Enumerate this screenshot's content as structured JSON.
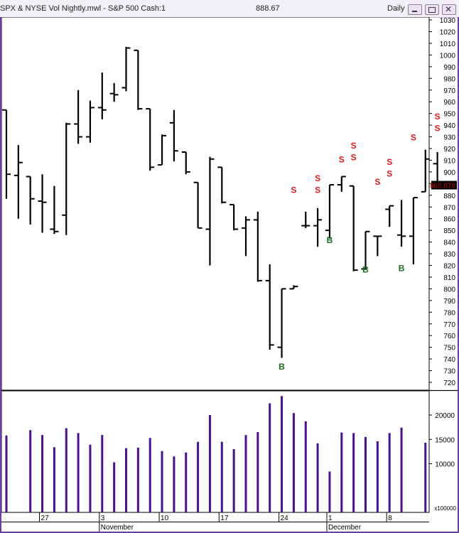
{
  "window": {
    "title": "SPX & NYSE Vol Nightly.mwl - S&P 500 Cash:1",
    "last_price": "888.67",
    "interval": "Daily"
  },
  "chart_data": {
    "type": "ohlc",
    "price_axis": {
      "min": 720,
      "max": 1030,
      "step": 10,
      "last_price_label": "888.670"
    },
    "volume_axis": {
      "ticks": [
        10000,
        15000,
        20000
      ],
      "multiplier_label": "x100000",
      "max": 25000
    },
    "x_ticks": [
      {
        "label": "27",
        "index": 3
      },
      {
        "label": "3",
        "index": 8
      },
      {
        "label": "10",
        "index": 13
      },
      {
        "label": "17",
        "index": 18
      },
      {
        "label": "24",
        "index": 23
      },
      {
        "label": "1",
        "index": 27
      },
      {
        "label": "8",
        "index": 32
      }
    ],
    "month_labels": [
      {
        "label": "November",
        "index": 8
      },
      {
        "label": "December",
        "index": 27
      }
    ],
    "bars": [
      {
        "o": 953,
        "h": 953,
        "l": 877,
        "c": 898
      },
      {
        "o": 897,
        "h": 923,
        "l": 860,
        "c": 908
      },
      {
        "o": 896,
        "h": 896,
        "l": 855,
        "c": 877
      },
      {
        "o": 875,
        "h": 898,
        "l": 848,
        "c": 874
      },
      {
        "o": 851,
        "h": 888,
        "l": 847,
        "c": 849
      },
      {
        "o": 863,
        "h": 942,
        "l": 846,
        "c": 941
      },
      {
        "o": 941,
        "h": 970,
        "l": 924,
        "c": 930
      },
      {
        "o": 930,
        "h": 961,
        "l": 925,
        "c": 955
      },
      {
        "o": 955,
        "h": 985,
        "l": 945,
        "c": 953
      },
      {
        "o": 967,
        "h": 976,
        "l": 960,
        "c": 966
      },
      {
        "o": 972,
        "h": 1007,
        "l": 969,
        "c": 1006
      },
      {
        "o": 1004,
        "h": 1004,
        "l": 953,
        "c": 954
      },
      {
        "o": 954,
        "h": 954,
        "l": 901,
        "c": 904
      },
      {
        "o": 906,
        "h": 932,
        "l": 907,
        "c": 931
      },
      {
        "o": 942,
        "h": 953,
        "l": 909,
        "c": 918
      },
      {
        "o": 917,
        "h": 917,
        "l": 898,
        "c": 900
      },
      {
        "o": 891,
        "h": 891,
        "l": 852,
        "c": 852
      },
      {
        "o": 851,
        "h": 913,
        "l": 820,
        "c": 911
      },
      {
        "o": 904,
        "h": 904,
        "l": 873,
        "c": 874
      },
      {
        "o": 872,
        "h": 872,
        "l": 850,
        "c": 851
      },
      {
        "o": 852,
        "h": 862,
        "l": 828,
        "c": 859
      },
      {
        "o": 859,
        "h": 866,
        "l": 806,
        "c": 807
      },
      {
        "o": 807,
        "h": 821,
        "l": 748,
        "c": 752
      },
      {
        "o": 750,
        "h": 757,
        "l": 741,
        "c": 800
      },
      {
        "o": 800,
        "h": 803,
        "l": 803,
        "c": 802
      },
      {
        "o": 854,
        "h": 866,
        "l": 852,
        "c": 854
      },
      {
        "o": 854,
        "h": 869,
        "l": 836,
        "c": 859
      },
      {
        "o": 850,
        "h": 860,
        "l": 843,
        "c": 889
      },
      {
        "o": 889,
        "h": 890,
        "l": 883,
        "c": 896
      },
      {
        "o": 888,
        "h": 888,
        "l": 815,
        "c": 816
      },
      {
        "o": 817,
        "h": 849,
        "l": 818,
        "c": 849
      },
      {
        "o": 845,
        "h": 845,
        "l": 828,
        "c": 845
      },
      {
        "o": 868,
        "h": 871,
        "l": 853,
        "c": 871
      },
      {
        "o": 846,
        "h": 876,
        "l": 836,
        "c": 845
      },
      {
        "o": 845,
        "h": 878,
        "l": 821,
        "c": 878
      },
      {
        "o": 883,
        "h": 919,
        "l": 883,
        "c": 911
      },
      {
        "o": 907,
        "h": 917,
        "l": 888,
        "c": 888
      }
    ],
    "volume": [
      15800,
      16900,
      15900,
      13400,
      17300,
      16300,
      13900,
      15900,
      10300,
      13200,
      13300,
      15300,
      12600,
      11500,
      12300,
      14500,
      20000,
      14500,
      13000,
      15900,
      16500,
      22400,
      23900,
      20400,
      18700,
      14200,
      8400,
      16400,
      16300,
      15500,
      14600,
      16300,
      17400,
      14300
    ],
    "volume_index_offset": [
      0,
      2,
      3,
      4,
      5,
      6,
      7,
      8,
      9,
      10,
      11,
      12,
      13,
      14,
      15,
      16,
      17,
      18,
      19,
      20,
      21,
      22,
      23,
      24,
      25,
      26,
      27,
      28,
      29,
      30,
      31,
      32,
      33,
      35
    ],
    "signals": [
      {
        "type": "B",
        "index": 23,
        "value": 731
      },
      {
        "type": "S",
        "index": 24,
        "value": 882
      },
      {
        "type": "S",
        "index": 26,
        "value": 882
      },
      {
        "type": "S",
        "index": 26,
        "value": 892
      },
      {
        "type": "B",
        "index": 27,
        "value": 839
      },
      {
        "type": "S",
        "index": 28,
        "value": 908
      },
      {
        "type": "S",
        "index": 29,
        "value": 910
      },
      {
        "type": "S",
        "index": 29,
        "value": 920
      },
      {
        "type": "B",
        "index": 30,
        "value": 814
      },
      {
        "type": "S",
        "index": 31,
        "value": 889
      },
      {
        "type": "S",
        "index": 32,
        "value": 896
      },
      {
        "type": "S",
        "index": 32,
        "value": 906
      },
      {
        "type": "B",
        "index": 33,
        "value": 815
      },
      {
        "type": "S",
        "index": 34,
        "value": 927
      },
      {
        "type": "S",
        "index": 36,
        "value": 935
      },
      {
        "type": "S",
        "index": 36,
        "value": 945
      }
    ],
    "colors": {
      "bars": "#000000",
      "volume": "#4b0f8f",
      "buy": "#1a6b1a",
      "sell": "#e0181e",
      "frame": "#6d3ca8",
      "price_flag": "#cc0000"
    }
  }
}
